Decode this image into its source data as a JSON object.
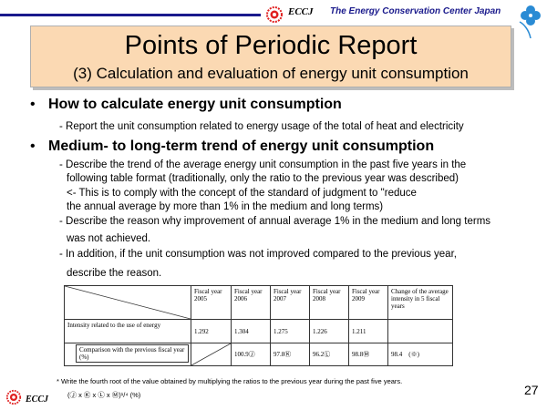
{
  "header": {
    "logo_text": "ECCJ",
    "org_name": "The Energy Conservation Center Japan",
    "accent_color": "#1a1a8c"
  },
  "title": {
    "main": "Points of Periodic Report",
    "sub": "(3) Calculation and evaluation of energy unit consumption"
  },
  "section1": {
    "bullet": "How to calculate energy unit consumption",
    "lines": [
      "- Report the unit consumption related to energy usage of the total of heat and electricity"
    ]
  },
  "section2": {
    "bullet": "Medium- to long-term trend of energy unit consumption",
    "lines": [
      "- Describe the trend of the average energy unit consumption in the past five years in the",
      "following table format (traditionally, only the ratio to the previous year was described)",
      "<- This is to comply with the concept of the standard of judgment  to \"reduce",
      "the annual average by more than 1% in the medium and long terms)",
      "- Describe the reason why improvement of annual average 1% in the medium and long terms",
      "was not achieved.",
      "- In addition, if the unit consumption was not improved compared to the previous year,",
      "describe the reason."
    ]
  },
  "table": {
    "headers": [
      "Fiscal year 2005",
      "Fiscal year 2006",
      "Fiscal year 2007",
      "Fiscal year 2008",
      "Fiscal year 2009",
      "Change of the average intensity in 5 fiscal years"
    ],
    "row1": {
      "label": "Intensity related to the use of energy",
      "values": [
        "1.292",
        "1.304",
        "1.275",
        "1.226",
        "1.211",
        ""
      ]
    },
    "row2": {
      "label": "Comparison with the previous fiscal year (%)",
      "values": [
        "",
        "100.9Ⓙ",
        "97.8Ⓚ",
        "96.2Ⓛ",
        "98.8Ⓜ",
        "98.4　(※)"
      ]
    }
  },
  "footnote": "* Write the fourth root of the value obtained by multiplying the ratios to the previous year   during the past five years.",
  "formula": "(Ⓙ x Ⓚ x Ⓛ x Ⓜ)¹/⁴ (%)",
  "page_number": "27",
  "footer": {
    "logo_text": "ECCJ"
  }
}
